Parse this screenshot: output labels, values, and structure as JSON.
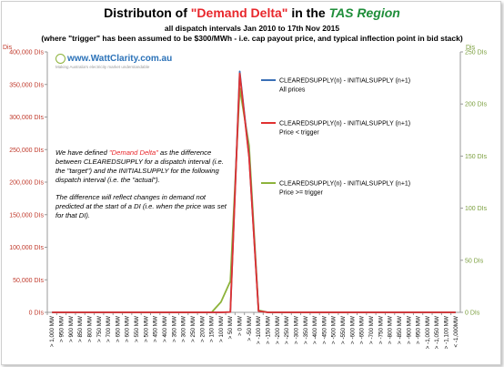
{
  "title": {
    "prefix": "Distributon of ",
    "highlight": "\"Demand Delta\"",
    "middle": " in the ",
    "region": "TAS Region"
  },
  "subtitle1": "all dispatch intervals Jan 2010 to 17th Nov 2015",
  "subtitle2": "(where \"trigger\" has been assumed to be $300/MWh - i.e. cap payout price, and typical inflection point in bid stack)",
  "logo": {
    "name": "www.WattClarity.com.au",
    "tagline": "Making Australia's electricity market understandable"
  },
  "note": {
    "p1_a": "We have defined ",
    "p1_hl": "\"Demand Delta\"",
    "p1_b": " as the difference between CLEAREDSUPPLY for a dispatch interval (i.e. the \"target\") and the INITIALSUPPLY for the following dispatch interval (i.e. the \"actual\").",
    "p2": "The difference will reflect changes in demand not predicted at the start of a DI (i.e. when the price was set for that DI)."
  },
  "colors": {
    "all": "#3a6fb6",
    "low": "#e03131",
    "high": "#8db33b"
  },
  "chart_data": {
    "type": "line",
    "left_axis": {
      "title": "Dis",
      "range": [
        0,
        400000
      ],
      "ticks": [
        0,
        50000,
        100000,
        150000,
        200000,
        250000,
        300000,
        350000,
        400000
      ],
      "tick_labels": [
        "0 DIs",
        "50,000 DIs",
        "100,000 DIs",
        "150,000 DIs",
        "200,000 DIs",
        "250,000 DIs",
        "300,000 DIs",
        "350,000 DIs",
        "400,000 DIs"
      ]
    },
    "right_axis": {
      "title": "Dis",
      "range": [
        0,
        250
      ],
      "ticks": [
        0,
        50,
        100,
        150,
        200,
        250
      ],
      "tick_labels": [
        "0 DIs",
        "50 DIs",
        "100 DIs",
        "150 DIs",
        "200 DIs",
        "250 DIs"
      ]
    },
    "categories": [
      "> 1,000 MW",
      "> 950 MW",
      "> 900 MW",
      "> 850 MW",
      "> 800 MW",
      "> 750 MW",
      "> 700 MW",
      "> 650 MW",
      "> 600 MW",
      "> 550 MW",
      "> 500 MW",
      "> 450 MW",
      "> 400 MW",
      "> 350 MW",
      "> 300 MW",
      "> 250 MW",
      "> 200 MW",
      "> 150 MW",
      "> 100 MW",
      "> 50 MW",
      "> 0 MW",
      "> -50 MW",
      "> -100 MW",
      "> -150 MW",
      "> -200 MW",
      "> -250 MW",
      "> -300 MW",
      "> -350 MW",
      "> -400 MW",
      "> -450 MW",
      "> -500 MW",
      "> -550 MW",
      "> -600 MW",
      "> -650 MW",
      "> -700 MW",
      "> -750 MW",
      "> -800 MW",
      "> -850 MW",
      "> -900 MW",
      "> -950 MW",
      "> -1,000 MW",
      "> -1,050 MW",
      "> -1,100 MW",
      "< -1,000MW"
    ],
    "series": [
      {
        "name": "CLEAREDSUPPLY(n) - INITIALSUPPLY (n+1)\nAll prices",
        "axis": "left",
        "color": "#3a6fb6",
        "values": [
          0,
          0,
          0,
          0,
          0,
          0,
          0,
          0,
          0,
          0,
          0,
          0,
          0,
          0,
          0,
          0,
          0,
          0,
          0,
          500,
          370000,
          240000,
          2000,
          0,
          0,
          0,
          0,
          0,
          0,
          0,
          0,
          0,
          0,
          0,
          0,
          0,
          0,
          0,
          0,
          0,
          0,
          0,
          0,
          0
        ]
      },
      {
        "name": "CLEAREDSUPPLY(n) - INITIALSUPPLY (n+1)\nPrice < trigger",
        "axis": "left",
        "color": "#e03131",
        "values": [
          0,
          0,
          0,
          0,
          0,
          0,
          0,
          0,
          0,
          0,
          0,
          0,
          0,
          0,
          0,
          0,
          0,
          0,
          0,
          500,
          367000,
          238000,
          2000,
          0,
          0,
          0,
          0,
          0,
          0,
          0,
          0,
          0,
          0,
          0,
          0,
          0,
          0,
          0,
          0,
          0,
          0,
          0,
          0,
          0
        ]
      },
      {
        "name": "CLEAREDSUPPLY(n) - INITIALSUPPLY (n+1)\nPrice >= trigger",
        "axis": "right",
        "color": "#8db33b",
        "values": [
          0,
          0,
          0,
          0,
          0,
          0,
          0,
          0,
          0,
          0,
          0,
          0,
          0,
          0,
          0,
          0,
          0,
          0,
          10,
          30,
          215,
          160,
          2,
          0,
          0,
          0,
          0,
          0,
          0,
          0,
          0,
          0,
          0,
          0,
          0,
          0,
          0,
          0,
          0,
          0,
          0,
          0,
          0,
          0
        ]
      }
    ],
    "grid": false,
    "legend_position": "right"
  }
}
